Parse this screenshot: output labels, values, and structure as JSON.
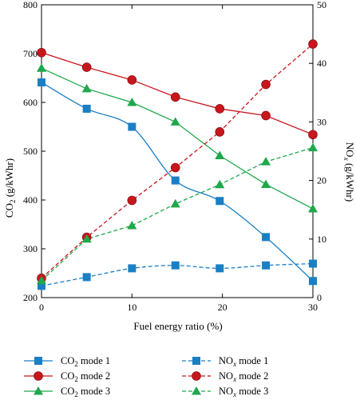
{
  "chart_data": {
    "type": "line",
    "title": "",
    "xlabel": "Fuel energy ratio (%)",
    "ylabel_left": {
      "base": "CO",
      "sub": "2",
      "unit": " (g/kWhr)"
    },
    "ylabel_right": {
      "base": "NO",
      "sub": "x",
      "unit": " (g/kWhr)"
    },
    "xlim": [
      0,
      30
    ],
    "ylim_left": [
      200,
      800
    ],
    "ylim_right": [
      0,
      50
    ],
    "xticks": [
      0,
      10,
      20,
      30
    ],
    "yticks_left": [
      200,
      300,
      400,
      500,
      600,
      700,
      800
    ],
    "yticks_right": [
      0,
      10,
      20,
      30,
      40,
      50
    ],
    "grid": false,
    "legend_position": "bottom",
    "x": [
      0,
      5,
      10,
      14.8,
      19.7,
      24.8,
      30
    ],
    "series": [
      {
        "name": "mode 1",
        "label_base": "CO",
        "label_sub": "2",
        "label_rest": " mode 1",
        "axis": "left",
        "line": "solid",
        "marker": "square",
        "color": "#1a7fc4",
        "smooth": true,
        "values": [
          641,
          587,
          550,
          440,
          398,
          324,
          234
        ]
      },
      {
        "name": "mode 2",
        "label_base": "CO",
        "label_sub": "2",
        "label_rest": " mode 2",
        "axis": "left",
        "line": "solid",
        "marker": "circle",
        "color": "#c8161d",
        "smooth": false,
        "values": [
          702,
          672,
          646,
          611,
          587,
          573,
          534
        ]
      },
      {
        "name": "mode 3",
        "label_base": "CO",
        "label_sub": "2",
        "label_rest": " mode 3",
        "axis": "left",
        "line": "solid",
        "marker": "triangle",
        "color": "#1fa84c",
        "smooth": false,
        "values": [
          670,
          628,
          600,
          560,
          491,
          432,
          382
        ]
      },
      {
        "name": "mode 1",
        "label_base": "NO",
        "label_sub": "x",
        "label_rest": " mode 1",
        "axis": "right",
        "line": "dashed",
        "marker": "square",
        "color": "#1a7fc4",
        "smooth": true,
        "values": [
          2.0,
          3.5,
          5.0,
          5.5,
          5.0,
          5.5,
          5.8
        ]
      },
      {
        "name": "mode 2",
        "label_base": "NO",
        "label_sub": "x",
        "label_rest": " mode 2",
        "axis": "right",
        "line": "dashed",
        "marker": "circle",
        "color": "#c8161d",
        "smooth": false,
        "values": [
          3.3,
          10.3,
          16.6,
          22.2,
          28.3,
          36.4,
          43.3
        ]
      },
      {
        "name": "mode 3",
        "label_base": "NO",
        "label_sub": "x",
        "label_rest": " mode 3",
        "axis": "right",
        "line": "dashed",
        "marker": "triangle",
        "color": "#1fa84c",
        "smooth": false,
        "values": [
          2.9,
          10.0,
          12.3,
          16.0,
          19.3,
          23.2,
          25.6
        ]
      }
    ]
  }
}
